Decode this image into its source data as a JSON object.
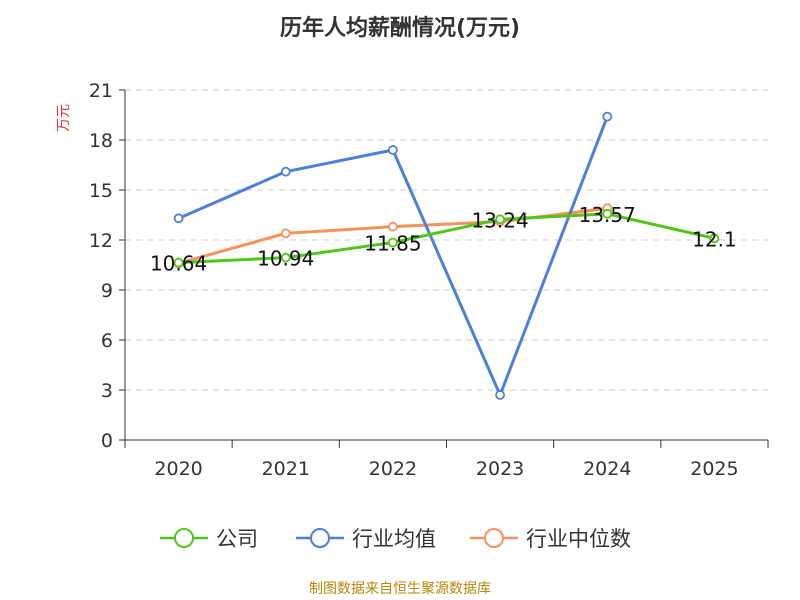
{
  "chart_data": {
    "type": "line",
    "title": "历年人均薪酬情况(万元)",
    "ylabel": "万元",
    "xlabel": "",
    "categories": [
      "2020",
      "2021",
      "2022",
      "2023",
      "2024",
      "2025"
    ],
    "ylim": [
      0,
      21
    ],
    "yticks": [
      0,
      3,
      6,
      9,
      12,
      15,
      18,
      21
    ],
    "grid": true,
    "legend_position": "bottom",
    "series": [
      {
        "name": "公司",
        "color": "#52c41a",
        "values": [
          10.64,
          10.94,
          11.85,
          13.24,
          13.57,
          12.1
        ],
        "labels": [
          "10.64",
          "10.94",
          "11.85",
          "13.24",
          "13.57",
          "12.1"
        ]
      },
      {
        "name": "行业均值",
        "color": "#4e7fd6",
        "values": [
          13.3,
          16.1,
          17.4,
          2.7,
          19.4,
          null
        ]
      },
      {
        "name": "行业中位数",
        "color": "#f4925e",
        "values": [
          10.6,
          12.4,
          12.8,
          13.1,
          13.9,
          null
        ]
      }
    ]
  },
  "source": "制图数据来自恒生聚源数据库"
}
